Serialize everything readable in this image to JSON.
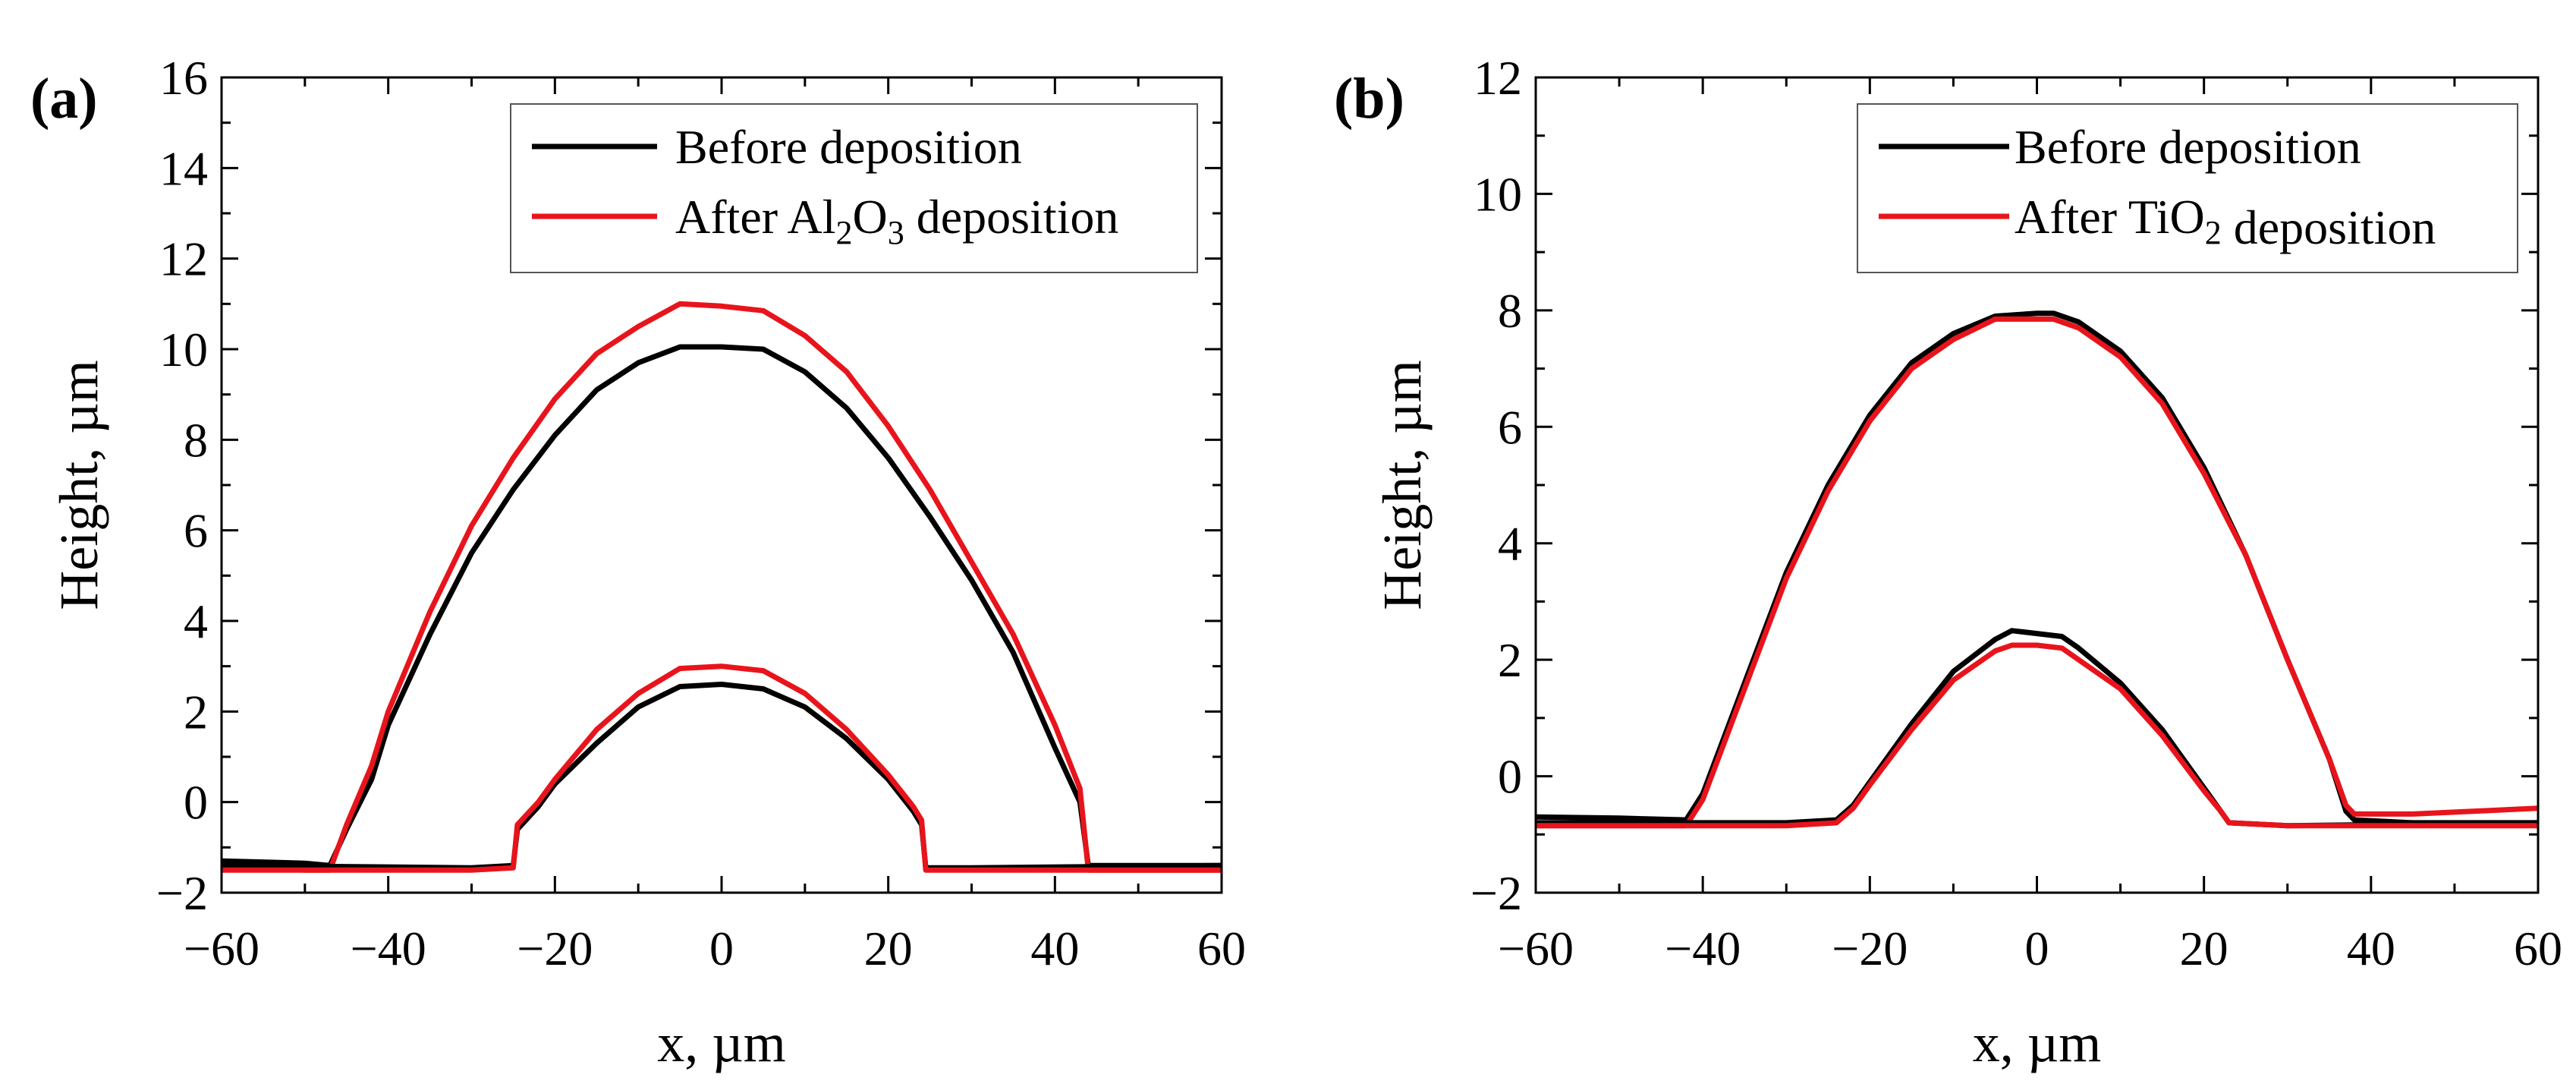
{
  "figure": {
    "description_free": true
  },
  "chart_data": [
    {
      "type": "line",
      "panel_label": "(a)",
      "xlabel": "x, µm",
      "ylabel": "Height, µm",
      "xlim": [
        -60,
        60
      ],
      "ylim": [
        -2,
        16
      ],
      "xticks": [
        -60,
        -40,
        -20,
        0,
        20,
        40,
        60
      ],
      "yticks": [
        -2,
        0,
        2,
        4,
        6,
        8,
        10,
        12,
        14,
        16
      ],
      "xtick_labels": [
        "−60",
        "−40",
        "−20",
        "0",
        "20",
        "40",
        "60"
      ],
      "ytick_labels": [
        "−2",
        "0",
        "2",
        "4",
        "6",
        "8",
        "10",
        "12",
        "14",
        "16"
      ],
      "legend": {
        "position": "top-right",
        "entries": [
          {
            "label": "Before deposition",
            "color": "#000000"
          },
          {
            "label_parts": [
              "After Al",
              "2",
              "O",
              "3",
              " deposition"
            ],
            "label": "After Al2O3 deposition",
            "color": "#e8141c"
          }
        ]
      },
      "series": [
        {
          "name": "Before deposition (outer)",
          "color": "#000000",
          "x": [
            -60,
            -50,
            -47,
            -45,
            -42,
            -40,
            -35,
            -30,
            -25,
            -20,
            -15,
            -10,
            -5,
            0,
            5,
            10,
            15,
            20,
            25,
            30,
            35,
            40,
            43,
            44,
            50,
            60
          ],
          "y": [
            -1.3,
            -1.35,
            -1.4,
            -0.6,
            0.5,
            1.7,
            3.7,
            5.5,
            6.9,
            8.1,
            9.1,
            9.7,
            10.05,
            10.05,
            10.0,
            9.5,
            8.7,
            7.6,
            6.3,
            4.9,
            3.3,
            1.2,
            0.0,
            -1.4,
            -1.4,
            -1.4
          ]
        },
        {
          "name": "After deposition (outer)",
          "color": "#e8141c",
          "x": [
            -60,
            -50,
            -47,
            -45,
            -42,
            -40,
            -35,
            -30,
            -25,
            -20,
            -15,
            -10,
            -5,
            0,
            5,
            10,
            15,
            20,
            25,
            30,
            35,
            40,
            43,
            44,
            50,
            60
          ],
          "y": [
            -1.4,
            -1.5,
            -1.5,
            -0.5,
            0.8,
            2.0,
            4.2,
            6.1,
            7.6,
            8.9,
            9.9,
            10.5,
            11.0,
            10.95,
            10.85,
            10.3,
            9.5,
            8.3,
            6.9,
            5.3,
            3.7,
            1.7,
            0.3,
            -1.5,
            -1.5,
            -1.5
          ]
        },
        {
          "name": "Before deposition (inner)",
          "color": "#000000",
          "x": [
            -60,
            -30,
            -25,
            -24.5,
            -22,
            -20,
            -15,
            -10,
            -5,
            0,
            5,
            10,
            15,
            20,
            23,
            24,
            24.5,
            30,
            60
          ],
          "y": [
            -1.4,
            -1.45,
            -1.4,
            -0.6,
            -0.1,
            0.4,
            1.3,
            2.1,
            2.55,
            2.6,
            2.5,
            2.1,
            1.4,
            0.5,
            -0.2,
            -0.5,
            -1.45,
            -1.45,
            -1.4
          ]
        },
        {
          "name": "After deposition (inner)",
          "color": "#e8141c",
          "x": [
            -60,
            -30,
            -25,
            -24.5,
            -22,
            -20,
            -15,
            -10,
            -5,
            0,
            5,
            10,
            15,
            20,
            23,
            24,
            24.5,
            30,
            60
          ],
          "y": [
            -1.5,
            -1.5,
            -1.45,
            -0.5,
            0.0,
            0.5,
            1.6,
            2.4,
            2.95,
            3.0,
            2.9,
            2.4,
            1.6,
            0.6,
            -0.1,
            -0.4,
            -1.5,
            -1.5,
            -1.5
          ]
        }
      ]
    },
    {
      "type": "line",
      "panel_label": "(b)",
      "xlabel": "x, µm",
      "ylabel": "Height, µm",
      "xlim": [
        -60,
        60
      ],
      "ylim": [
        -2,
        12
      ],
      "xticks": [
        -60,
        -40,
        -20,
        0,
        20,
        40,
        60
      ],
      "yticks": [
        -2,
        0,
        2,
        4,
        6,
        8,
        10,
        12
      ],
      "xtick_labels": [
        "−60",
        "−40",
        "−20",
        "0",
        "20",
        "40",
        "60"
      ],
      "ytick_labels": [
        "−2",
        "0",
        "2",
        "4",
        "6",
        "8",
        "10",
        "12"
      ],
      "legend": {
        "position": "top-right",
        "entries": [
          {
            "label": "Before deposition",
            "color": "#000000"
          },
          {
            "label_parts": [
              "After TiO",
              "2",
              "",
              "",
              " deposition"
            ],
            "label": "After TiO2 deposition",
            "color": "#e8141c"
          }
        ]
      },
      "series": [
        {
          "name": "Before deposition (outer)",
          "color": "#000000",
          "x": [
            -60,
            -50,
            -42,
            -40,
            -35,
            -30,
            -25,
            -20,
            -15,
            -10,
            -5,
            0,
            2,
            5,
            10,
            15,
            20,
            25,
            30,
            35,
            37,
            38,
            45,
            60
          ],
          "y": [
            -0.7,
            -0.72,
            -0.75,
            -0.3,
            1.6,
            3.5,
            5.0,
            6.2,
            7.1,
            7.6,
            7.9,
            7.95,
            7.95,
            7.8,
            7.3,
            6.5,
            5.3,
            3.8,
            2.0,
            0.3,
            -0.6,
            -0.75,
            -0.8,
            -0.8
          ]
        },
        {
          "name": "After deposition (outer)",
          "color": "#e8141c",
          "x": [
            -60,
            -50,
            -42,
            -40,
            -35,
            -30,
            -25,
            -20,
            -15,
            -10,
            -5,
            0,
            2,
            5,
            10,
            15,
            20,
            25,
            30,
            35,
            37,
            38,
            45,
            60
          ],
          "y": [
            -0.85,
            -0.85,
            -0.85,
            -0.4,
            1.5,
            3.4,
            4.9,
            6.1,
            7.0,
            7.5,
            7.85,
            7.85,
            7.85,
            7.7,
            7.2,
            6.4,
            5.2,
            3.8,
            2.0,
            0.3,
            -0.5,
            -0.65,
            -0.65,
            -0.55
          ]
        },
        {
          "name": "Before deposition (inner)",
          "color": "#000000",
          "x": [
            -60,
            -30,
            -24,
            -22,
            -20,
            -15,
            -10,
            -5,
            -3,
            0,
            3,
            5,
            10,
            15,
            20,
            22,
            23,
            30,
            60
          ],
          "y": [
            -0.8,
            -0.8,
            -0.75,
            -0.5,
            -0.1,
            0.9,
            1.8,
            2.35,
            2.5,
            2.45,
            2.4,
            2.2,
            1.6,
            0.8,
            -0.2,
            -0.6,
            -0.8,
            -0.85,
            -0.8
          ]
        },
        {
          "name": "After deposition (inner)",
          "color": "#e8141c",
          "x": [
            -60,
            -30,
            -24,
            -22,
            -20,
            -15,
            -10,
            -5,
            -3,
            0,
            3,
            5,
            10,
            15,
            20,
            22,
            23,
            30,
            60
          ],
          "y": [
            -0.85,
            -0.85,
            -0.8,
            -0.55,
            -0.15,
            0.8,
            1.65,
            2.15,
            2.25,
            2.25,
            2.2,
            2.0,
            1.5,
            0.7,
            -0.25,
            -0.6,
            -0.8,
            -0.85,
            -0.85
          ]
        }
      ]
    }
  ]
}
